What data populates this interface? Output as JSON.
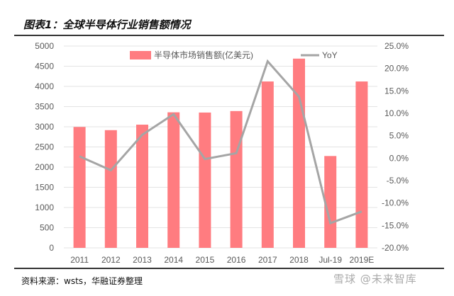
{
  "title": "图表1：全球半导体行业销售额情况",
  "source": "资料来源：wsts，华融证券整理",
  "watermark": "雪球 @未来智库",
  "chart_data": {
    "type": "bar+line",
    "categories": [
      "2011",
      "2012",
      "2013",
      "2014",
      "2015",
      "2016",
      "2017",
      "2018",
      "Jul-19",
      "2019E"
    ],
    "series": [
      {
        "name": "半导体市场销售额(亿美元)",
        "type": "bar",
        "axis": "left",
        "color": "#FF7C80",
        "values": [
          2995,
          2916,
          3052,
          3358,
          3352,
          3389,
          4122,
          4688,
          2275,
          4122
        ]
      },
      {
        "name": "YoY",
        "type": "line",
        "axis": "right",
        "color": "#A5A5A5",
        "values": [
          0.4,
          -2.7,
          5.2,
          9.8,
          -0.2,
          1.1,
          21.6,
          13.7,
          -14.5,
          -11.9
        ]
      }
    ],
    "ylim_left": [
      0,
      5000
    ],
    "yticks_left": [
      "0",
      "500",
      "1000",
      "1500",
      "2000",
      "2500",
      "3000",
      "3500",
      "4000",
      "4500",
      "5000"
    ],
    "ylim_right": [
      -20,
      25
    ],
    "yticks_right": [
      "-20.0%",
      "-15.0%",
      "-10.0%",
      "-5.0%",
      "0.0%",
      "5.0%",
      "10.0%",
      "15.0%",
      "20.0%",
      "25.0%"
    ],
    "grid": true,
    "legend": "top"
  }
}
